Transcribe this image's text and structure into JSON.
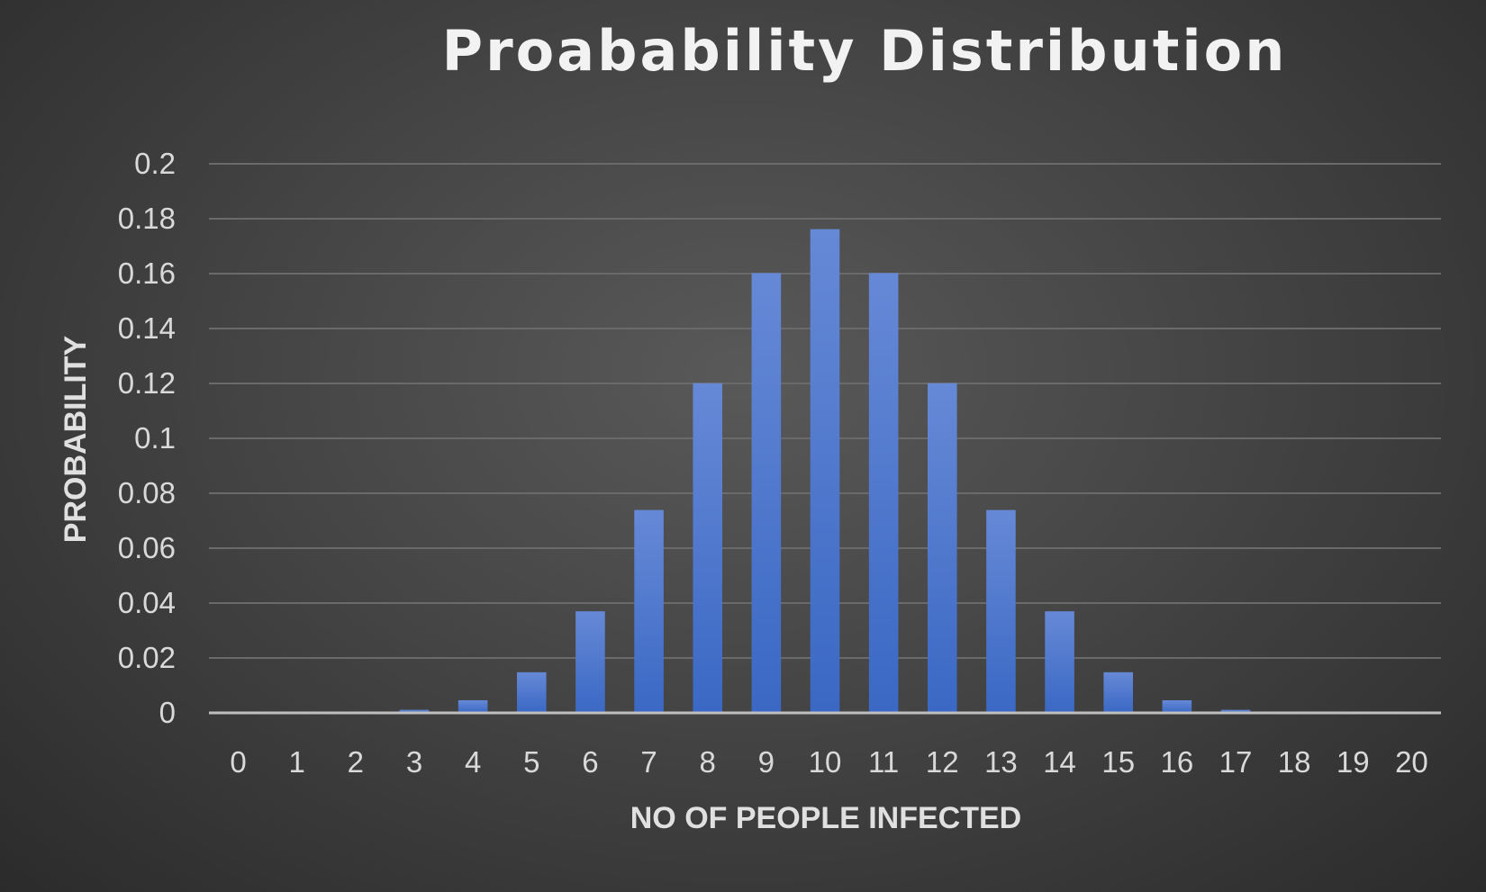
{
  "chart_data": {
    "type": "bar",
    "title": "Proabability Distribution",
    "xlabel": "NO OF PEOPLE INFECTED",
    "ylabel": "PROBABILITY",
    "categories": [
      "0",
      "1",
      "2",
      "3",
      "4",
      "5",
      "6",
      "7",
      "8",
      "9",
      "10",
      "11",
      "12",
      "13",
      "14",
      "15",
      "16",
      "17",
      "18",
      "19",
      "20"
    ],
    "values": [
      0.0,
      0.0,
      0.0002,
      0.0011,
      0.0046,
      0.0148,
      0.037,
      0.0739,
      0.1201,
      0.1602,
      0.1762,
      0.1602,
      0.1201,
      0.0739,
      0.037,
      0.0148,
      0.0046,
      0.0011,
      0.0002,
      0.0,
      0.0
    ],
    "yticks": [
      "0",
      "0.02",
      "0.04",
      "0.06",
      "0.08",
      "0.1",
      "0.12",
      "0.14",
      "0.16",
      "0.18",
      "0.2"
    ],
    "ylim": [
      0,
      0.2
    ],
    "grid": true,
    "legend": "none",
    "colors": {
      "bar_top": "#6689d6",
      "bar_bottom": "#3a68c4",
      "background": "#454545"
    }
  }
}
